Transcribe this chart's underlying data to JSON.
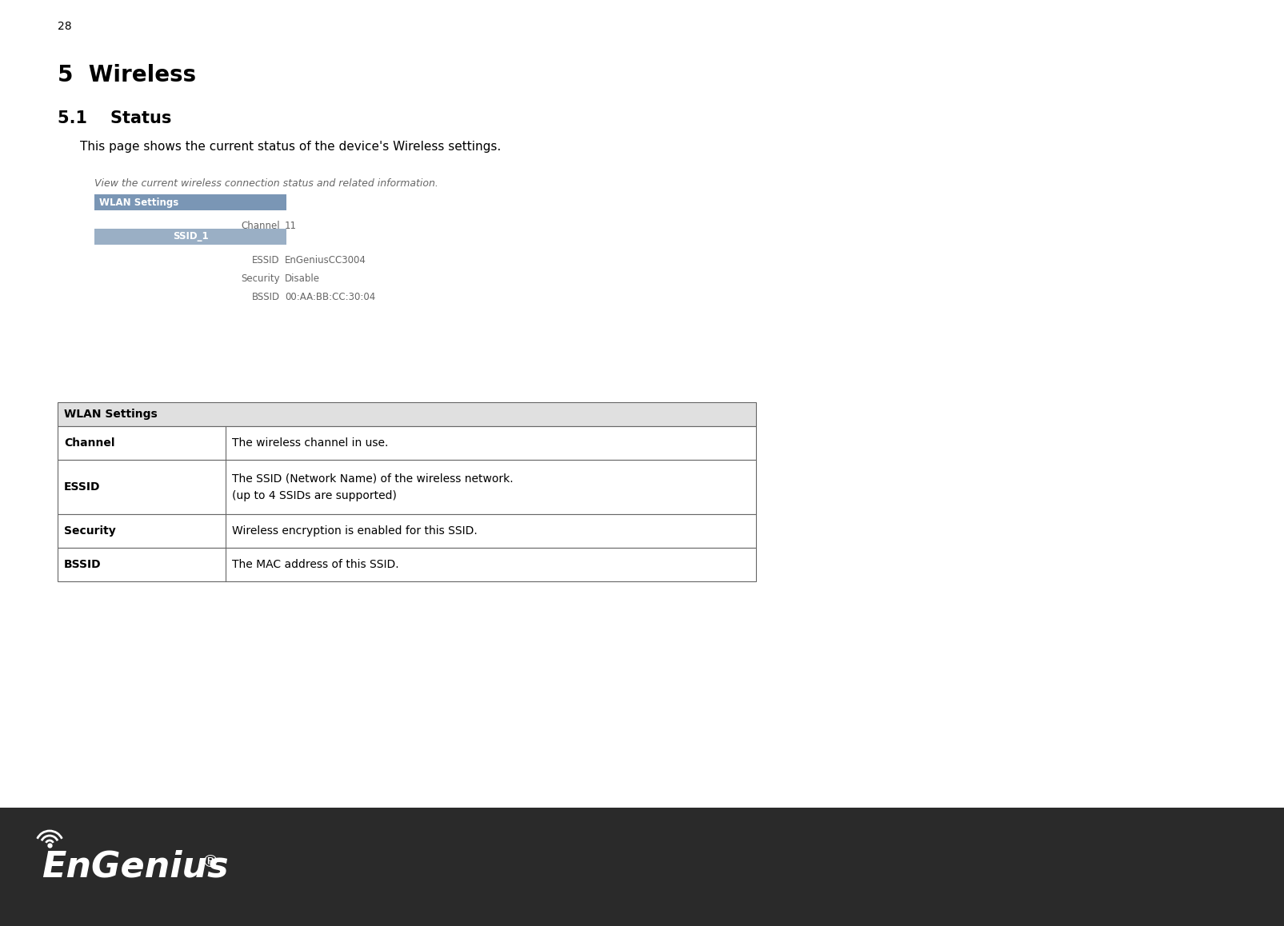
{
  "page_number": "28",
  "section_title": "5  Wireless",
  "subsection_title": "5.1    Status",
  "intro_text": "This page shows the current status of the device's Wireless settings.",
  "ui_caption": "View the current wireless connection status and related information.",
  "ui_wlan_header": "WLAN Settings",
  "ui_channel_label": "Channel",
  "ui_channel_value": "11",
  "ui_ssid_header": "SSID_1",
  "ui_essid_label": "ESSID",
  "ui_essid_value": "EnGeniusCC3004",
  "ui_security_label": "Security",
  "ui_security_value": "Disable",
  "ui_bssid_label": "BSSID",
  "ui_bssid_value": "00:AA:BB:CC:30:04",
  "table_header": "WLAN Settings",
  "table_rows": [
    {
      "col1": "Channel",
      "col2": "The wireless channel in use.",
      "multiline": false
    },
    {
      "col1": "ESSID",
      "col2": "The SSID (Network Name) of the wireless network.",
      "col2b": "(up to 4 SSIDs are supported)",
      "multiline": true
    },
    {
      "col1": "Security",
      "col2": "Wireless encryption is enabled for this SSID.",
      "multiline": false
    },
    {
      "col1": "BSSID",
      "col2": "The MAC address of this SSID.",
      "multiline": false
    }
  ],
  "footer_bg_color": "#2a2a2a",
  "footer_logo_text": "EnGenius",
  "footer_reg_symbol": "®",
  "wlan_header_color": "#7a96b5",
  "ssid_header_color": "#9aafc5",
  "table_header_bg": "#e0e0e0",
  "table_border_color": "#666666",
  "page_bg": "#ffffff",
  "text_color": "#000000",
  "ui_text_color": "#666666",
  "ui_font_size": 9,
  "intro_font_size": 11,
  "section_font_size": 20,
  "subsection_font_size": 15,
  "table_font_size": 10
}
